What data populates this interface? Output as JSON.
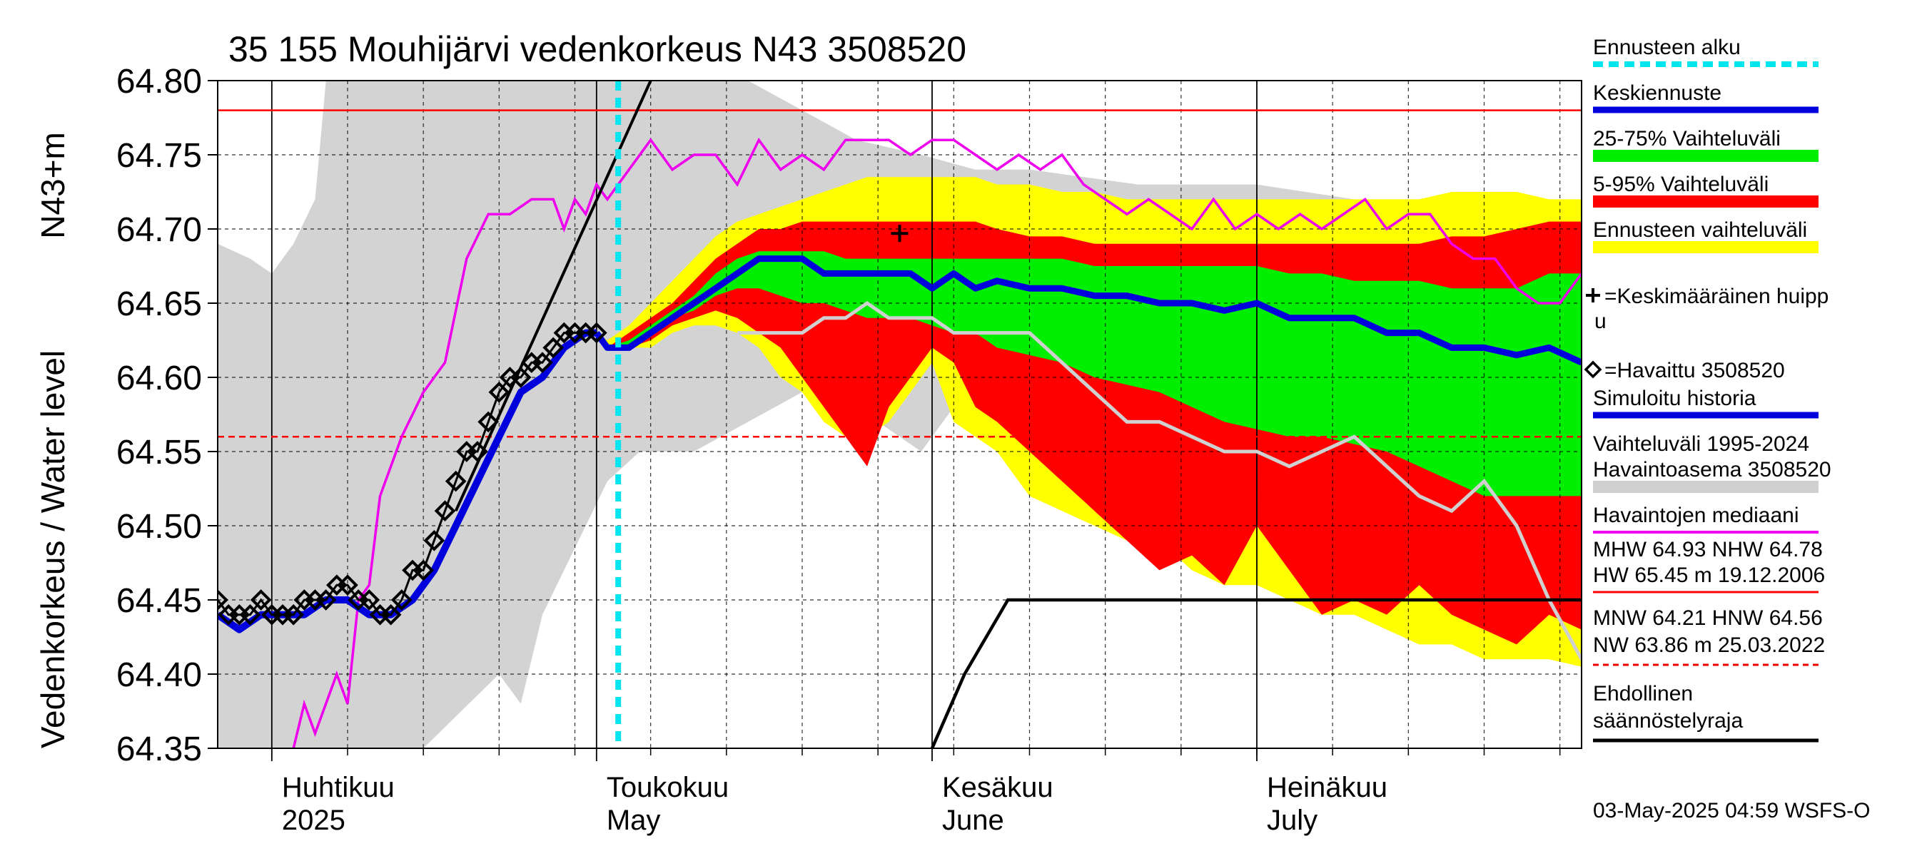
{
  "chart_data": {
    "type": "area",
    "title": "35 155 Mouhijärvi vedenkorkeus N43 3508520",
    "ylabel_top": "N43+m",
    "ylabel_bottom": "Vedenkorkeus / Water level",
    "ylim": [
      64.35,
      64.8
    ],
    "yticks": [
      "64.80",
      "64.75",
      "64.70",
      "64.65",
      "64.60",
      "64.55",
      "64.50",
      "64.45",
      "64.40",
      "64.35"
    ],
    "x_range": [
      "2025-03-27",
      "2025-07-31"
    ],
    "months": [
      {
        "fi": "Huhtikuu",
        "en": "2025"
      },
      {
        "fi": "Toukokuu",
        "en": "May"
      },
      {
        "fi": "Kesäkuu",
        "en": "June"
      },
      {
        "fi": "Heinäkuu",
        "en": "July"
      }
    ],
    "grid": true,
    "forecast_start": "2025-05-03",
    "reference_lines": {
      "NHW": 64.78,
      "HNW": 64.56
    },
    "historical_range": {
      "dates": [
        "2025-03-27",
        "2025-03-30",
        "2025-04-01",
        "2025-04-03",
        "2025-04-05",
        "2025-04-06",
        "2025-04-15",
        "2025-04-22",
        "2025-04-24",
        "2025-04-26",
        "2025-04-28",
        "2025-04-30",
        "2025-05-02",
        "2025-05-05",
        "2025-05-10",
        "2025-05-15",
        "2025-05-20",
        "2025-05-25",
        "2025-05-31",
        "2025-06-05",
        "2025-06-10",
        "2025-06-20",
        "2025-07-01",
        "2025-07-10",
        "2025-07-20",
        "2025-07-31"
      ],
      "low": [
        64.69,
        64.68,
        64.67,
        64.69,
        64.72,
        64.8,
        64.8,
        64.8,
        64.8,
        64.8,
        64.8,
        64.8,
        64.8,
        64.8,
        64.8,
        64.8,
        64.78,
        64.76,
        64.75,
        64.74,
        64.74,
        64.73,
        64.73,
        64.72,
        64.71,
        64.71
      ],
      "high_lower": [
        64.35,
        64.35,
        64.35,
        64.35,
        64.35,
        64.35,
        64.35,
        64.4,
        64.38,
        64.44,
        64.47,
        64.5,
        64.53,
        64.55,
        64.55,
        64.57,
        64.59,
        64.58,
        64.55,
        64.6,
        64.62,
        64.65,
        64.65,
        64.66,
        64.66,
        64.68
      ]
    },
    "observed": {
      "dates": [
        "2025-03-27",
        "2025-03-28",
        "2025-03-29",
        "2025-03-30",
        "2025-03-31",
        "2025-04-01",
        "2025-04-02",
        "2025-04-03",
        "2025-04-04",
        "2025-04-05",
        "2025-04-06",
        "2025-04-07",
        "2025-04-08",
        "2025-04-09",
        "2025-04-10",
        "2025-04-11",
        "2025-04-12",
        "2025-04-13",
        "2025-04-14",
        "2025-04-15",
        "2025-04-16",
        "2025-04-17",
        "2025-04-18",
        "2025-04-19",
        "2025-04-20",
        "2025-04-21",
        "2025-04-22",
        "2025-04-23",
        "2025-04-24",
        "2025-04-25",
        "2025-04-26",
        "2025-04-27",
        "2025-04-28",
        "2025-04-29",
        "2025-04-30",
        "2025-05-01"
      ],
      "values": [
        64.45,
        64.44,
        64.44,
        64.44,
        64.45,
        64.44,
        64.44,
        64.44,
        64.45,
        64.45,
        64.45,
        64.46,
        64.46,
        64.45,
        64.45,
        64.44,
        64.44,
        64.45,
        64.47,
        64.47,
        64.49,
        64.51,
        64.53,
        64.55,
        64.55,
        64.57,
        64.59,
        64.6,
        64.6,
        64.61,
        64.61,
        64.62,
        64.63,
        64.63,
        64.63,
        64.63
      ]
    },
    "simulated_history": {
      "dates": [
        "2025-03-27",
        "2025-03-29",
        "2025-03-31",
        "2025-04-02",
        "2025-04-04",
        "2025-04-06",
        "2025-04-08",
        "2025-04-10",
        "2025-04-12",
        "2025-04-14",
        "2025-04-16",
        "2025-04-18",
        "2025-04-20",
        "2025-04-22",
        "2025-04-24",
        "2025-04-26",
        "2025-04-28",
        "2025-04-30",
        "2025-05-01"
      ],
      "values": [
        64.44,
        64.43,
        64.44,
        64.44,
        64.44,
        64.45,
        64.45,
        64.44,
        64.44,
        64.45,
        64.47,
        64.5,
        64.53,
        64.56,
        64.59,
        64.6,
        64.62,
        64.63,
        64.63
      ]
    },
    "median": {
      "dates": [
        "2025-04-03",
        "2025-04-04",
        "2025-04-05",
        "2025-04-07",
        "2025-04-08",
        "2025-04-09",
        "2025-04-10",
        "2025-04-11",
        "2025-04-13",
        "2025-04-15",
        "2025-04-17",
        "2025-04-19",
        "2025-04-21",
        "2025-04-23",
        "2025-04-25",
        "2025-04-26",
        "2025-04-27",
        "2025-04-28",
        "2025-04-29",
        "2025-04-30",
        "2025-05-01",
        "2025-05-02",
        "2025-05-04",
        "2025-05-06",
        "2025-05-08",
        "2025-05-10",
        "2025-05-12",
        "2025-05-14",
        "2025-05-16",
        "2025-05-18",
        "2025-05-20",
        "2025-05-22",
        "2025-05-24",
        "2025-05-26",
        "2025-05-28",
        "2025-05-30",
        "2025-06-01",
        "2025-06-03",
        "2025-06-05",
        "2025-06-07",
        "2025-06-09",
        "2025-06-11",
        "2025-06-13",
        "2025-06-15",
        "2025-06-17",
        "2025-06-19",
        "2025-06-21",
        "2025-06-23",
        "2025-06-25",
        "2025-06-27",
        "2025-06-29",
        "2025-07-01",
        "2025-07-03",
        "2025-07-05",
        "2025-07-07",
        "2025-07-09",
        "2025-07-11",
        "2025-07-13",
        "2025-07-15",
        "2025-07-17",
        "2025-07-19",
        "2025-07-21",
        "2025-07-23",
        "2025-07-25",
        "2025-07-27",
        "2025-07-29",
        "2025-07-31"
      ],
      "values": [
        64.35,
        64.38,
        64.36,
        64.4,
        64.38,
        64.45,
        64.46,
        64.52,
        64.56,
        64.59,
        64.61,
        64.68,
        64.71,
        64.71,
        64.72,
        64.72,
        64.72,
        64.7,
        64.72,
        64.71,
        64.73,
        64.72,
        64.74,
        64.76,
        64.74,
        64.75,
        64.75,
        64.73,
        64.76,
        64.74,
        64.75,
        64.74,
        64.76,
        64.76,
        64.76,
        64.75,
        64.76,
        64.76,
        64.75,
        64.74,
        64.75,
        64.74,
        64.75,
        64.73,
        64.72,
        64.71,
        64.72,
        64.71,
        64.7,
        64.72,
        64.7,
        64.71,
        64.7,
        64.71,
        64.7,
        64.71,
        64.72,
        64.7,
        64.71,
        64.71,
        64.69,
        64.68,
        64.68,
        64.66,
        64.65,
        64.65,
        64.67
      ]
    },
    "forecast": {
      "dates": [
        "2025-05-01",
        "2025-05-02",
        "2025-05-04",
        "2025-05-06",
        "2025-05-08",
        "2025-05-10",
        "2025-05-12",
        "2025-05-14",
        "2025-05-16",
        "2025-05-18",
        "2025-05-20",
        "2025-05-22",
        "2025-05-24",
        "2025-05-26",
        "2025-05-28",
        "2025-05-30",
        "2025-06-01",
        "2025-06-03",
        "2025-06-05",
        "2025-06-07",
        "2025-06-10",
        "2025-06-13",
        "2025-06-16",
        "2025-06-19",
        "2025-06-22",
        "2025-06-25",
        "2025-06-28",
        "2025-07-01",
        "2025-07-04",
        "2025-07-07",
        "2025-07-10",
        "2025-07-13",
        "2025-07-16",
        "2025-07-19",
        "2025-07-22",
        "2025-07-25",
        "2025-07-28",
        "2025-07-31"
      ],
      "mean": [
        64.63,
        64.62,
        64.62,
        64.63,
        64.64,
        64.65,
        64.66,
        64.67,
        64.68,
        64.68,
        64.68,
        64.67,
        64.67,
        64.67,
        64.67,
        64.67,
        64.66,
        64.67,
        64.66,
        64.665,
        64.66,
        64.66,
        64.655,
        64.655,
        64.65,
        64.65,
        64.645,
        64.65,
        64.64,
        64.64,
        64.64,
        64.63,
        64.63,
        64.62,
        64.62,
        64.615,
        64.62,
        64.61
      ],
      "p25": [
        64.63,
        64.62,
        64.62,
        64.63,
        64.64,
        64.645,
        64.655,
        64.66,
        64.66,
        64.655,
        64.65,
        64.65,
        64.645,
        64.64,
        64.64,
        64.64,
        64.635,
        64.63,
        64.63,
        64.62,
        64.615,
        64.61,
        64.6,
        64.595,
        64.59,
        64.58,
        64.57,
        64.565,
        64.56,
        64.56,
        64.555,
        64.55,
        64.54,
        64.53,
        64.52,
        64.52,
        64.52,
        64.52
      ],
      "p75": [
        64.63,
        64.62,
        64.625,
        64.635,
        64.645,
        64.655,
        64.67,
        64.68,
        64.685,
        64.685,
        64.685,
        64.685,
        64.68,
        64.68,
        64.68,
        64.68,
        64.68,
        64.68,
        64.68,
        64.68,
        64.68,
        64.68,
        64.675,
        64.675,
        64.675,
        64.675,
        64.675,
        64.675,
        64.67,
        64.67,
        64.665,
        64.665,
        64.665,
        64.66,
        64.66,
        64.66,
        64.67,
        64.67
      ],
      "p5": [
        64.63,
        64.62,
        64.62,
        64.625,
        64.635,
        64.64,
        64.645,
        64.64,
        64.63,
        64.62,
        64.6,
        64.58,
        64.56,
        64.54,
        64.58,
        64.6,
        64.62,
        64.61,
        64.58,
        64.57,
        64.55,
        64.53,
        64.51,
        64.49,
        64.47,
        64.48,
        64.46,
        64.5,
        64.47,
        64.44,
        64.45,
        64.44,
        64.46,
        64.44,
        64.43,
        64.42,
        64.44,
        64.43
      ],
      "p95": [
        64.63,
        64.62,
        64.63,
        64.64,
        64.65,
        64.665,
        64.68,
        64.69,
        64.7,
        64.7,
        64.705,
        64.705,
        64.705,
        64.705,
        64.705,
        64.705,
        64.705,
        64.705,
        64.705,
        64.7,
        64.695,
        64.695,
        64.69,
        64.69,
        64.69,
        64.69,
        64.69,
        64.69,
        64.69,
        64.69,
        64.69,
        64.69,
        64.69,
        64.695,
        64.695,
        64.7,
        64.705,
        64.705
      ],
      "min": [
        64.63,
        64.62,
        64.62,
        64.62,
        64.63,
        64.635,
        64.635,
        64.63,
        64.62,
        64.6,
        64.59,
        64.57,
        64.56,
        64.56,
        64.57,
        64.59,
        64.61,
        64.57,
        64.56,
        64.55,
        64.52,
        64.51,
        64.5,
        64.49,
        64.49,
        64.47,
        64.46,
        64.46,
        64.45,
        64.44,
        64.44,
        64.43,
        64.42,
        64.42,
        64.41,
        64.41,
        64.41,
        64.405
      ],
      "max": [
        64.63,
        64.625,
        64.635,
        64.65,
        64.665,
        64.68,
        64.695,
        64.705,
        64.71,
        64.715,
        64.72,
        64.725,
        64.73,
        64.735,
        64.735,
        64.735,
        64.735,
        64.735,
        64.735,
        64.73,
        64.73,
        64.725,
        64.725,
        64.72,
        64.72,
        64.72,
        64.72,
        64.72,
        64.72,
        64.72,
        64.72,
        64.72,
        64.72,
        64.725,
        64.725,
        64.725,
        64.72,
        64.72
      ]
    },
    "median_history_gray": {
      "dates": [
        "2025-05-14",
        "2025-05-20",
        "2025-05-22",
        "2025-05-24",
        "2025-05-26",
        "2025-05-28",
        "2025-06-01",
        "2025-06-03",
        "2025-06-07",
        "2025-06-10",
        "2025-06-13",
        "2025-06-16",
        "2025-06-19",
        "2025-06-22",
        "2025-06-25",
        "2025-06-28",
        "2025-07-01",
        "2025-07-04",
        "2025-07-07",
        "2025-07-10",
        "2025-07-13",
        "2025-07-16",
        "2025-07-19",
        "2025-07-22",
        "2025-07-25",
        "2025-07-28",
        "2025-07-31"
      ],
      "values": [
        64.63,
        64.63,
        64.64,
        64.64,
        64.65,
        64.64,
        64.64,
        64.63,
        64.63,
        64.63,
        64.61,
        64.59,
        64.57,
        64.57,
        64.56,
        64.55,
        64.55,
        64.54,
        64.55,
        64.56,
        64.54,
        64.52,
        64.51,
        64.53,
        64.5,
        64.45,
        64.41
      ]
    },
    "mean_peak": {
      "date": "2025-05-29",
      "value": 64.697
    },
    "regulation_limit": {
      "dates": [
        "2025-06-01",
        "2025-06-04",
        "2025-06-08",
        "2025-07-31"
      ],
      "values": [
        64.35,
        64.4,
        64.45,
        64.45
      ]
    },
    "trend_line": {
      "dates": [
        "2025-04-18",
        "2025-05-06"
      ],
      "values": [
        64.51,
        64.8
      ]
    }
  },
  "legend": [
    {
      "label": "Ennusteen alku",
      "color": "#00e5ee",
      "style": "dash"
    },
    {
      "label": "Keskiennuste",
      "color": "#0000dd",
      "style": "line"
    },
    {
      "label": "25-75% Vaihteluväli",
      "color": "#00ee00",
      "style": "band"
    },
    {
      "label": "5-95% Vaihteluväli",
      "color": "#ff0000",
      "style": "band"
    },
    {
      "label": "Ennusteen vaihteluväli",
      "color": "#ffff00",
      "style": "band"
    },
    {
      "label": "=Keskimääräinen huipp",
      "label2": "u",
      "style": "cross"
    },
    {
      "label": "=Havaittu 3508520",
      "style": "diamond"
    },
    {
      "label": "Simuloitu historia",
      "color": "#0000dd",
      "style": "line"
    },
    {
      "label": "Vaihteluväli 1995-2024",
      "label2": " Havaintoasema 3508520",
      "color": "#d0d0d0",
      "style": "band"
    },
    {
      "label": "Havaintojen mediaani",
      "color": "#ee00ee",
      "style": "line"
    }
  ],
  "stats": {
    "line1": "MHW  64.93 NHW  64.78",
    "line2": "HW  65.45 m 19.12.2006",
    "line3": "MNW  64.21 HNW  64.56",
    "line4": "NW  63.86 m 25.03.2022"
  },
  "conditional_limit": {
    "line1": "Ehdollinen",
    "line2": "säännöstelyraja"
  },
  "footer": "03-May-2025 04:59 WSFS-O",
  "colors": {
    "gray_band": "#d3d3d3",
    "forecast_range": "#ffff00",
    "p5_95": "#ff0000",
    "p25_75": "#00ee00",
    "mean": "#0000dd",
    "median": "#ee00ee",
    "nhw_line": "#ff0000",
    "forecast_start": "#00e5ee",
    "gray_median": "#d0d0d0"
  }
}
